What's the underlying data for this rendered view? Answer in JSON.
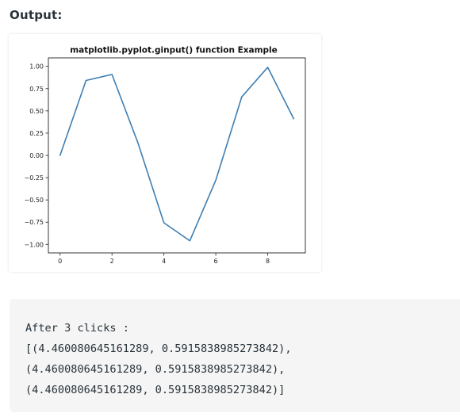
{
  "heading": "Output:",
  "chart_data": {
    "type": "line",
    "title": "matplotlib.pyplot.ginput() function Example",
    "xlabel": "",
    "ylabel": "",
    "x": [
      0,
      1,
      2,
      3,
      4,
      5,
      6,
      7,
      8,
      9
    ],
    "series": [
      {
        "values": [
          0.0,
          0.841,
          0.909,
          0.141,
          -0.757,
          -0.959,
          -0.279,
          0.657,
          0.989,
          0.412
        ]
      }
    ],
    "xlim": [
      -0.45,
      9.45
    ],
    "ylim": [
      -1.095,
      1.095
    ],
    "xticks": [
      0,
      2,
      4,
      6,
      8
    ],
    "xtick_labels": [
      "0",
      "2",
      "4",
      "6",
      "8"
    ],
    "yticks": [
      1.0,
      0.75,
      0.5,
      0.25,
      0.0,
      -0.25,
      -0.5,
      -0.75,
      -1.0
    ],
    "ytick_labels": [
      "1.00",
      "0.75",
      "0.50",
      "0.25",
      "0.00",
      "−0.25",
      "−0.50",
      "−0.75",
      "−1.00"
    ],
    "grid": false,
    "line_color": "#3d7fb4"
  },
  "console": {
    "lines": [
      "After 3 clicks :",
      "[(4.460080645161289, 0.5915838985273842),",
      "(4.460080645161289, 0.5915838985273842),",
      "(4.460080645161289, 0.5915838985273842)]"
    ]
  }
}
